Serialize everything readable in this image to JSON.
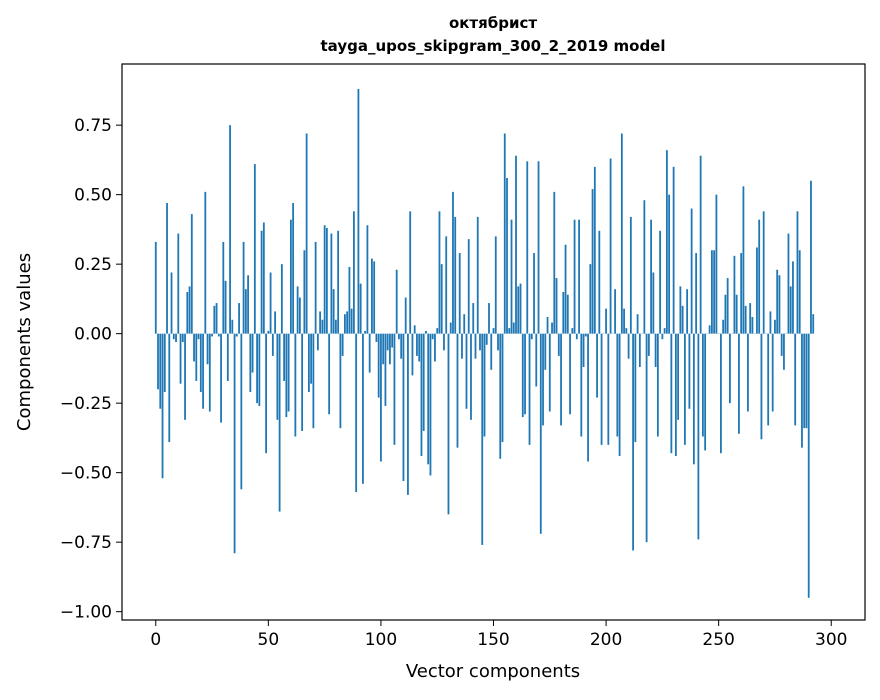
{
  "chart_data": {
    "type": "bar",
    "title": "октябрист",
    "subtitle": "tayga_upos_skipgram_300_2_2019 model",
    "xlabel": "Vector components",
    "ylabel": "Components values",
    "xlim": [
      -15,
      315
    ],
    "ylim": [
      -1.03,
      0.97
    ],
    "xticks": [
      0,
      50,
      100,
      150,
      200,
      250,
      300
    ],
    "yticks": [
      0.75,
      0.5,
      0.25,
      0.0,
      -0.25,
      -0.5,
      -0.75,
      -1.0
    ],
    "ytick_labels": [
      "0.75",
      "0.50",
      "0.25",
      "0.00",
      "−0.25",
      "−0.50",
      "−0.75",
      "−1.00"
    ],
    "color": "#1f77b4",
    "values": [
      0.33,
      -0.2,
      -0.27,
      -0.52,
      -0.21,
      0.47,
      -0.39,
      0.22,
      -0.02,
      -0.03,
      0.36,
      -0.18,
      -0.03,
      -0.31,
      0.15,
      0.17,
      0.43,
      -0.1,
      -0.17,
      -0.02,
      -0.21,
      -0.27,
      0.51,
      -0.11,
      -0.28,
      -0.01,
      0.1,
      0.11,
      -0.01,
      -0.32,
      0.33,
      0.19,
      -0.17,
      0.75,
      0.05,
      -0.79,
      -0.01,
      0.11,
      -0.56,
      0.33,
      0.16,
      0.21,
      -0.21,
      -0.14,
      0.61,
      -0.25,
      -0.26,
      0.37,
      0.4,
      -0.43,
      0.01,
      0.22,
      -0.08,
      0.08,
      -0.31,
      -0.64,
      0.25,
      -0.17,
      -0.3,
      -0.28,
      0.41,
      0.47,
      -0.37,
      0.17,
      0.13,
      -0.35,
      0.3,
      0.72,
      -0.21,
      -0.18,
      -0.34,
      0.33,
      -0.06,
      0.08,
      0.05,
      0.39,
      0.38,
      -0.29,
      0.36,
      0.16,
      0.05,
      0.37,
      -0.34,
      -0.08,
      0.07,
      0.08,
      0.24,
      0.09,
      0.44,
      -0.57,
      0.88,
      0.18,
      -0.54,
      0.01,
      0.39,
      -0.14,
      0.27,
      0.26,
      -0.03,
      -0.23,
      -0.46,
      -0.11,
      -0.26,
      -0.06,
      -0.11,
      -0.05,
      -0.4,
      0.23,
      -0.02,
      -0.09,
      -0.53,
      0.13,
      -0.58,
      0.44,
      -0.15,
      0.03,
      -0.08,
      -0.1,
      -0.44,
      -0.35,
      0.01,
      -0.47,
      -0.51,
      -0.02,
      -0.1,
      0.02,
      0.44,
      0.25,
      -0.06,
      0.35,
      -0.65,
      0.04,
      0.51,
      0.42,
      -0.41,
      0.29,
      -0.09,
      0.07,
      -0.27,
      0.34,
      -0.31,
      0.11,
      -0.09,
      0.42,
      -0.06,
      -0.76,
      -0.37,
      -0.04,
      0.11,
      -0.13,
      0.02,
      0.35,
      -0.06,
      -0.45,
      -0.39,
      0.72,
      0.56,
      0.02,
      0.41,
      0.04,
      0.64,
      0.17,
      0.18,
      -0.3,
      -0.29,
      0.62,
      -0.4,
      -0.02,
      0.29,
      -0.19,
      0.62,
      -0.72,
      -0.33,
      -0.13,
      0.06,
      -0.28,
      0.04,
      0.51,
      0.2,
      -0.08,
      -0.33,
      0.15,
      0.32,
      0.14,
      -0.29,
      0.02,
      0.41,
      -0.02,
      0.41,
      -0.37,
      -0.12,
      -0.01,
      -0.46,
      0.25,
      0.52,
      0.6,
      -0.23,
      0.37,
      -0.4,
      0.0,
      0.09,
      -0.4,
      0.63,
      0.0,
      0.16,
      -0.37,
      -0.44,
      0.72,
      0.09,
      0.02,
      -0.09,
      0.42,
      -0.78,
      -0.39,
      0.07,
      -0.12,
      0.0,
      0.48,
      -0.75,
      -0.08,
      0.41,
      0.22,
      -0.12,
      -0.37,
      0.37,
      -0.02,
      0.02,
      0.66,
      0.5,
      -0.43,
      0.6,
      -0.44,
      -0.31,
      0.17,
      0.1,
      -0.4,
      0.16,
      -0.27,
      0.45,
      -0.47,
      0.29,
      -0.74,
      0.64,
      -0.37,
      -0.42,
      0.0,
      0.03,
      0.3,
      0.3,
      0.5,
      0.0,
      -0.43,
      0.05,
      0.14,
      0.2,
      -0.25,
      0.0,
      0.28,
      0.14,
      -0.36,
      0.29,
      0.53,
      0.1,
      -0.28,
      0.11,
      0.06,
      0.0,
      0.31,
      0.41,
      -0.38,
      0.44,
      0.0,
      -0.33,
      0.08,
      -0.28,
      0.05,
      0.23,
      0.21,
      -0.08,
      -0.13,
      0.0,
      0.36,
      0.17,
      0.26,
      -0.33,
      0.44,
      0.3,
      -0.41,
      -0.34,
      -0.34,
      -0.95,
      0.55,
      0.07
    ]
  }
}
